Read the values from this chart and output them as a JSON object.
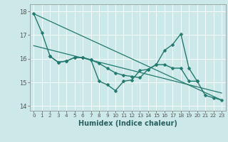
{
  "title": "",
  "xlabel": "Humidex (Indice chaleur)",
  "ylabel": "",
  "bg_color": "#cce8e8",
  "grid_color": "#ffffff",
  "line_color": "#217a6e",
  "xlim": [
    -0.5,
    23.5
  ],
  "ylim": [
    13.8,
    18.3
  ],
  "yticks": [
    14,
    15,
    16,
    17,
    18
  ],
  "xticks": [
    0,
    1,
    2,
    3,
    4,
    5,
    6,
    7,
    8,
    9,
    10,
    11,
    12,
    13,
    14,
    15,
    16,
    17,
    18,
    19,
    20,
    21,
    22,
    23
  ],
  "series": [
    {
      "x": [
        0,
        1,
        2,
        3,
        4,
        5,
        6,
        7,
        8,
        9,
        10,
        11,
        12,
        13,
        14,
        15,
        16,
        17,
        18,
        19,
        20,
        21,
        22,
        23
      ],
      "y": [
        17.9,
        17.1,
        16.1,
        15.85,
        15.9,
        16.05,
        16.05,
        15.95,
        15.05,
        14.9,
        14.65,
        15.05,
        15.1,
        15.5,
        15.55,
        15.75,
        16.35,
        16.6,
        17.05,
        15.6,
        15.05,
        14.45,
        14.35,
        14.25
      ],
      "marker": "D",
      "markersize": 2.5,
      "linewidth": 1.0
    },
    {
      "x": [
        2,
        3,
        4,
        5,
        6,
        7,
        8,
        9,
        10,
        11,
        12,
        13,
        14,
        15,
        16,
        17,
        18,
        19,
        20
      ],
      "y": [
        16.1,
        15.85,
        15.9,
        16.05,
        16.05,
        15.95,
        15.8,
        15.6,
        15.4,
        15.3,
        15.25,
        15.2,
        15.55,
        15.75,
        15.75,
        15.6,
        15.6,
        15.05,
        15.05
      ],
      "marker": "D",
      "markersize": 2.5,
      "linewidth": 1.0
    },
    {
      "x": [
        0,
        23
      ],
      "y": [
        17.9,
        14.25
      ],
      "marker": null,
      "markersize": 0,
      "linewidth": 0.9
    },
    {
      "x": [
        0,
        23
      ],
      "y": [
        16.55,
        14.55
      ],
      "marker": null,
      "markersize": 0,
      "linewidth": 0.9
    }
  ]
}
